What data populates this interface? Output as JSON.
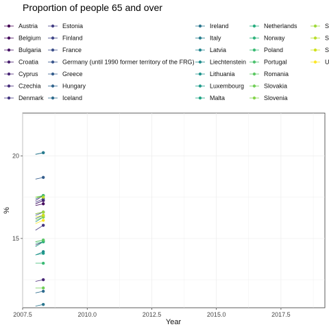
{
  "chart_data": {
    "type": "line",
    "title": "Proportion of people 65 and over",
    "xlabel": "Year",
    "ylabel": "%",
    "xlim": [
      2007.5,
      2019.2
    ],
    "ylim": [
      10.8,
      22.6
    ],
    "xticks": [
      "2007.5",
      "2010.0",
      "2012.5",
      "2015.0",
      "2017.5"
    ],
    "yticks": [
      "15",
      "20"
    ],
    "grid": true,
    "legend_position": "top",
    "x": [
      2008.0,
      2008.3
    ],
    "series": [
      {
        "name": "Austria",
        "color": "#440154",
        "values": [
          17.1,
          17.3
        ]
      },
      {
        "name": "Belgium",
        "color": "#460B5E",
        "values": [
          17.0,
          17.1
        ]
      },
      {
        "name": "Bulgaria",
        "color": "#471466",
        "values": [
          17.3,
          17.6
        ]
      },
      {
        "name": "Croatia",
        "color": "#481E6F",
        "values": [
          17.1,
          17.3
        ]
      },
      {
        "name": "Cyprus",
        "color": "#482677",
        "values": [
          12.4,
          12.5
        ]
      },
      {
        "name": "Czechia",
        "color": "#472E7C",
        "values": [
          14.6,
          14.8
        ]
      },
      {
        "name": "Denmark",
        "color": "#453681",
        "values": [
          15.5,
          15.8
        ]
      },
      {
        "name": "Estonia",
        "color": "#433E85",
        "values": [
          17.2,
          17.4
        ]
      },
      {
        "name": "Finland",
        "color": "#404688",
        "values": [
          16.5,
          16.6
        ]
      },
      {
        "name": "France",
        "color": "#3C4F8A",
        "values": [
          16.4,
          16.6
        ]
      },
      {
        "name": "Germany (until 1990 former territory of the FRG)",
        "color": "#39568C",
        "values": [
          20.1,
          20.2
        ]
      },
      {
        "name": "Greece",
        "color": "#355E8D",
        "values": [
          18.6,
          18.7
        ]
      },
      {
        "name": "Hungary",
        "color": "#31658E",
        "values": [
          16.2,
          16.4
        ]
      },
      {
        "name": "Iceland",
        "color": "#2E6C8E",
        "values": [
          11.7,
          11.8
        ]
      },
      {
        "name": "Ireland",
        "color": "#2A768E",
        "values": [
          10.9,
          11.0
        ]
      },
      {
        "name": "Italy",
        "color": "#277D8E",
        "values": [
          20.1,
          20.2
        ]
      },
      {
        "name": "Latvia",
        "color": "#24858E",
        "values": [
          17.4,
          17.6
        ]
      },
      {
        "name": "Liechtenstein",
        "color": "#218C8D",
        "values": [
          14.0,
          14.2
        ]
      },
      {
        "name": "Lithuania",
        "color": "#1F948C",
        "values": [
          16.0,
          16.3
        ]
      },
      {
        "name": "Luxembourg",
        "color": "#1F9B8A",
        "values": [
          14.0,
          14.1
        ]
      },
      {
        "name": "Malta",
        "color": "#21A585",
        "values": [
          14.5,
          14.8
        ]
      },
      {
        "name": "Netherlands",
        "color": "#28AE80",
        "values": [
          14.8,
          14.9
        ]
      },
      {
        "name": "Norway",
        "color": "#2EB37C",
        "values": [
          14.7,
          14.8
        ]
      },
      {
        "name": "Poland",
        "color": "#3BBB75",
        "values": [
          13.5,
          13.5
        ]
      },
      {
        "name": "Portugal",
        "color": "#4AC16D",
        "values": [
          17.5,
          17.6
        ]
      },
      {
        "name": "Romania",
        "color": "#5CC863",
        "values": [
          14.8,
          14.9
        ]
      },
      {
        "name": "Slovakia",
        "color": "#71CF57",
        "values": [
          12.0,
          12.0
        ]
      },
      {
        "name": "Slovenia",
        "color": "#85D54A",
        "values": [
          16.1,
          16.3
        ]
      },
      {
        "name": "Spain",
        "color": "#9FDA3A",
        "values": [
          16.5,
          16.6
        ]
      },
      {
        "name": "Sweden",
        "color": "#B8DE29",
        "values": [
          17.5,
          17.5
        ]
      },
      {
        "name": "Switzerland",
        "color": "#D0E11C",
        "values": [
          16.3,
          16.4
        ]
      },
      {
        "name": "United Kingdom",
        "color": "#FDE725",
        "values": [
          15.9,
          16.1
        ]
      }
    ]
  }
}
